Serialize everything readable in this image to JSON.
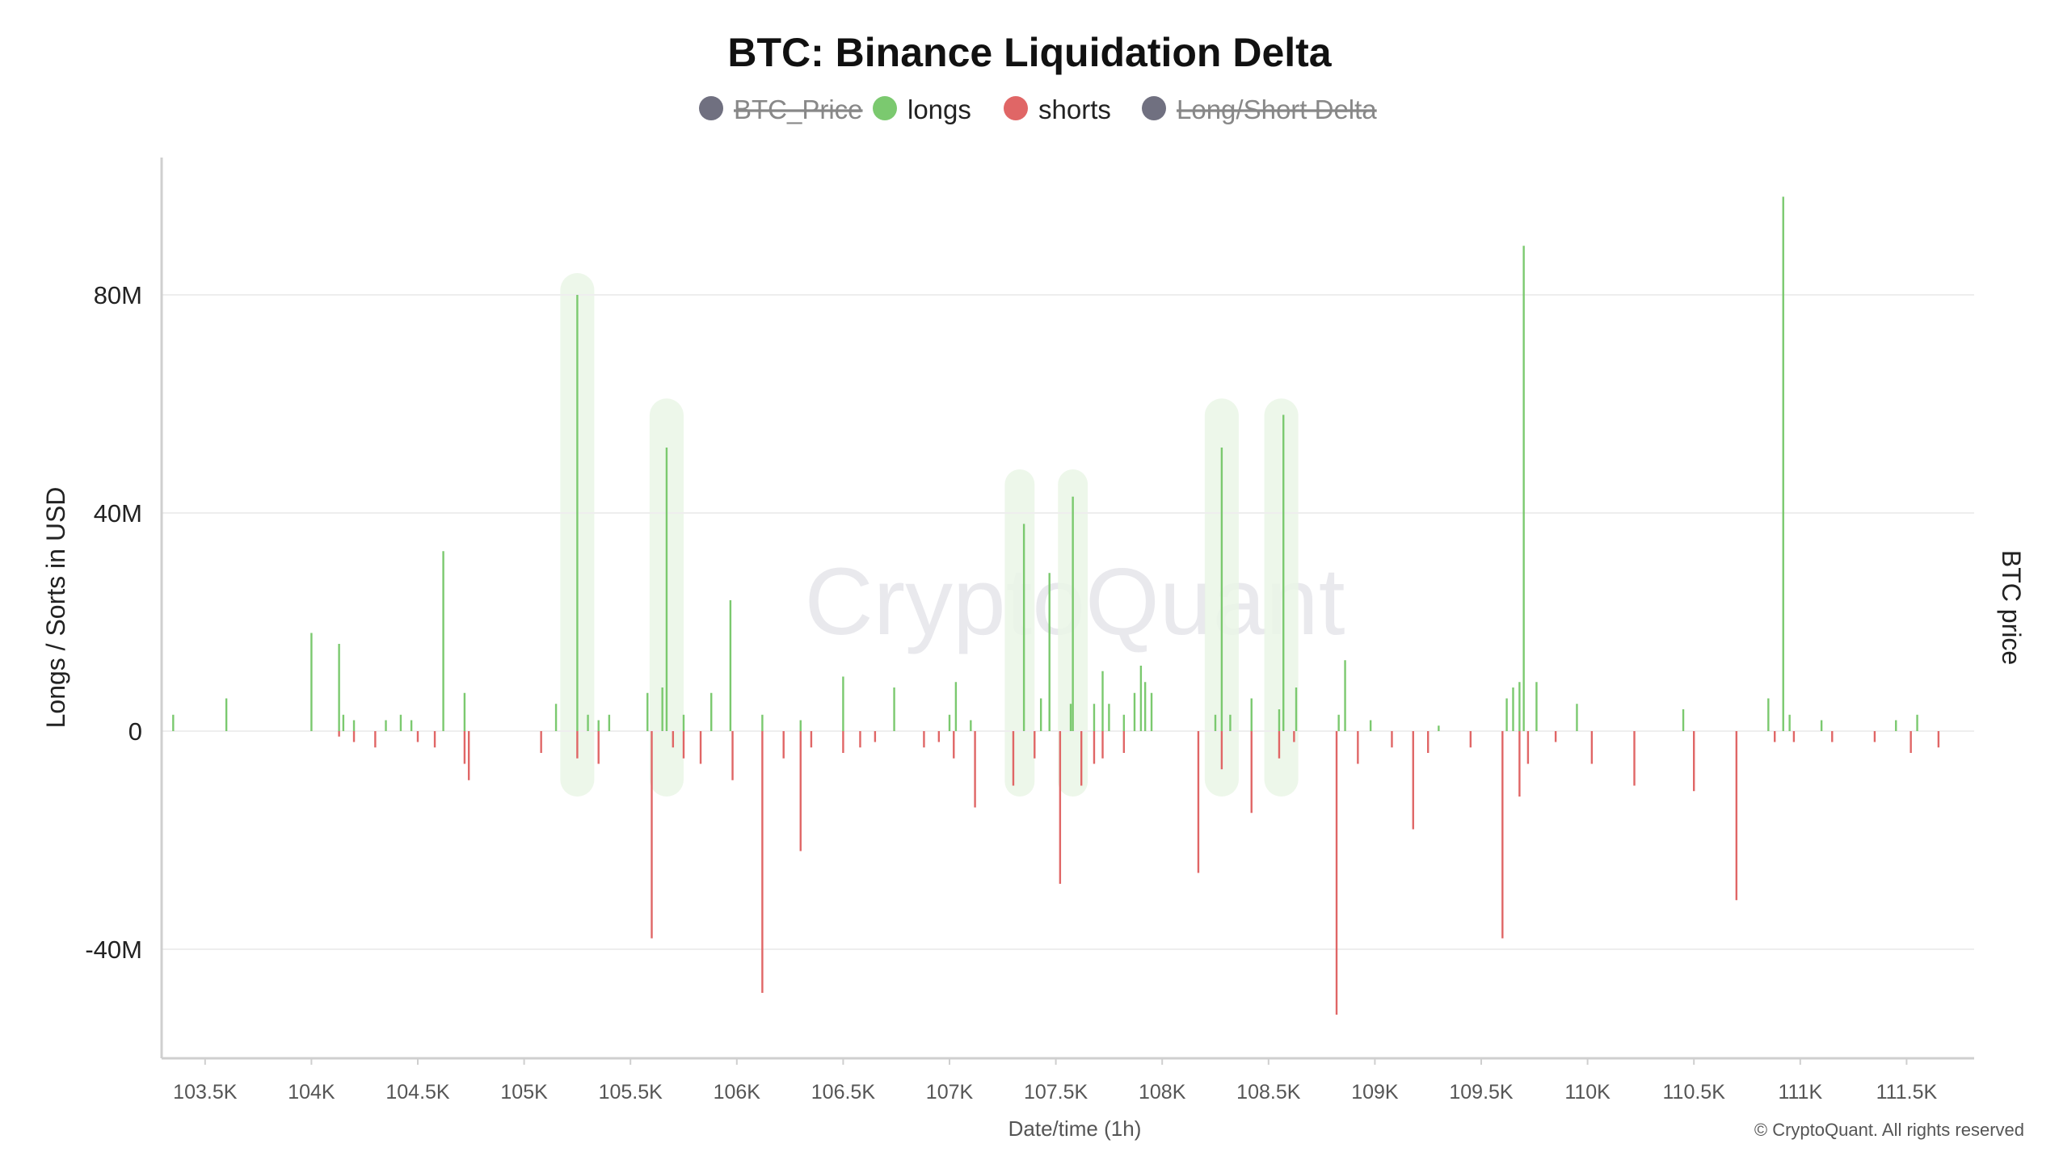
{
  "chart_data": {
    "type": "bar",
    "title": "BTC: Binance Liquidation Delta",
    "xlabel": "Date/time (1h)",
    "ylabel": "Longs / Sorts in USD",
    "y2label": "BTC price",
    "watermark": "CryptoQuant",
    "copyright": "© CryptoQuant. All rights reserved",
    "ylim": [
      -60,
      100
    ],
    "yticks": [
      {
        "value": 80,
        "label": "80M"
      },
      {
        "value": 40,
        "label": "40M"
      },
      {
        "value": 0,
        "label": "0"
      },
      {
        "value": -40,
        "label": "-40M"
      }
    ],
    "xlim": [
      103.25,
      111.75
    ],
    "xticks": [
      {
        "value": 103.5,
        "label": "103.5K"
      },
      {
        "value": 104.0,
        "label": "104K"
      },
      {
        "value": 104.5,
        "label": "104.5K"
      },
      {
        "value": 105.0,
        "label": "105K"
      },
      {
        "value": 105.5,
        "label": "105.5K"
      },
      {
        "value": 106.0,
        "label": "106K"
      },
      {
        "value": 106.5,
        "label": "106.5K"
      },
      {
        "value": 107.0,
        "label": "107K"
      },
      {
        "value": 107.5,
        "label": "107.5K"
      },
      {
        "value": 108.0,
        "label": "108K"
      },
      {
        "value": 108.5,
        "label": "108.5K"
      },
      {
        "value": 109.0,
        "label": "109K"
      },
      {
        "value": 109.5,
        "label": "109.5K"
      },
      {
        "value": 110.0,
        "label": "110K"
      },
      {
        "value": 110.5,
        "label": "110.5K"
      },
      {
        "value": 111.0,
        "label": "111K"
      },
      {
        "value": 111.5,
        "label": "111.5K"
      }
    ],
    "grid": true,
    "legend_position": "top-center",
    "legend": [
      {
        "label": "BTC_Price",
        "color": "#707080",
        "hidden": true
      },
      {
        "label": "longs",
        "color": "#7bc96f",
        "hidden": false
      },
      {
        "label": "shorts",
        "color": "#e06666",
        "hidden": false
      },
      {
        "label": "Long/Short Delta",
        "color": "#707080",
        "hidden": true
      }
    ],
    "series": [
      {
        "name": "longs",
        "color": "#7bc96f",
        "points": [
          [
            103.35,
            3
          ],
          [
            103.6,
            6
          ],
          [
            104.0,
            18
          ],
          [
            104.13,
            16
          ],
          [
            104.15,
            3
          ],
          [
            104.2,
            2
          ],
          [
            104.35,
            2
          ],
          [
            104.42,
            3
          ],
          [
            104.47,
            2
          ],
          [
            104.62,
            33
          ],
          [
            104.72,
            7
          ],
          [
            105.15,
            5
          ],
          [
            105.25,
            80
          ],
          [
            105.3,
            3
          ],
          [
            105.35,
            2
          ],
          [
            105.4,
            3
          ],
          [
            105.58,
            7
          ],
          [
            105.65,
            8
          ],
          [
            105.67,
            52
          ],
          [
            105.75,
            3
          ],
          [
            105.88,
            7
          ],
          [
            105.97,
            24
          ],
          [
            106.12,
            3
          ],
          [
            106.3,
            2
          ],
          [
            106.5,
            10
          ],
          [
            106.74,
            8
          ],
          [
            107.0,
            3
          ],
          [
            107.03,
            9
          ],
          [
            107.1,
            2
          ],
          [
            107.35,
            38
          ],
          [
            107.43,
            6
          ],
          [
            107.47,
            29
          ],
          [
            107.57,
            5
          ],
          [
            107.58,
            43
          ],
          [
            107.68,
            5
          ],
          [
            107.72,
            11
          ],
          [
            107.75,
            5
          ],
          [
            107.82,
            3
          ],
          [
            107.87,
            7
          ],
          [
            107.9,
            12
          ],
          [
            107.92,
            9
          ],
          [
            107.95,
            7
          ],
          [
            108.25,
            3
          ],
          [
            108.28,
            52
          ],
          [
            108.32,
            3
          ],
          [
            108.42,
            6
          ],
          [
            108.55,
            4
          ],
          [
            108.57,
            58
          ],
          [
            108.63,
            8
          ],
          [
            108.83,
            3
          ],
          [
            108.86,
            13
          ],
          [
            108.98,
            2
          ],
          [
            109.3,
            1
          ],
          [
            109.62,
            6
          ],
          [
            109.65,
            8
          ],
          [
            109.68,
            9
          ],
          [
            109.7,
            89
          ],
          [
            109.76,
            9
          ],
          [
            109.95,
            5
          ],
          [
            110.45,
            4
          ],
          [
            110.85,
            6
          ],
          [
            110.92,
            98
          ],
          [
            110.95,
            3
          ],
          [
            111.1,
            2
          ],
          [
            111.45,
            2
          ],
          [
            111.55,
            3
          ]
        ]
      },
      {
        "name": "shorts",
        "color": "#e06666",
        "points": [
          [
            104.13,
            -1
          ],
          [
            104.2,
            -2
          ],
          [
            104.3,
            -3
          ],
          [
            104.5,
            -2
          ],
          [
            104.58,
            -3
          ],
          [
            104.72,
            -6
          ],
          [
            104.74,
            -9
          ],
          [
            105.08,
            -4
          ],
          [
            105.25,
            -5
          ],
          [
            105.35,
            -6
          ],
          [
            105.6,
            -38
          ],
          [
            105.7,
            -3
          ],
          [
            105.75,
            -5
          ],
          [
            105.83,
            -6
          ],
          [
            105.98,
            -9
          ],
          [
            106.12,
            -48
          ],
          [
            106.22,
            -5
          ],
          [
            106.3,
            -22
          ],
          [
            106.35,
            -3
          ],
          [
            106.5,
            -4
          ],
          [
            106.58,
            -3
          ],
          [
            106.65,
            -2
          ],
          [
            106.88,
            -3
          ],
          [
            106.95,
            -2
          ],
          [
            107.02,
            -5
          ],
          [
            107.12,
            -14
          ],
          [
            107.3,
            -10
          ],
          [
            107.4,
            -5
          ],
          [
            107.52,
            -28
          ],
          [
            107.62,
            -10
          ],
          [
            107.68,
            -6
          ],
          [
            107.72,
            -5
          ],
          [
            107.82,
            -4
          ],
          [
            108.17,
            -26
          ],
          [
            108.28,
            -7
          ],
          [
            108.42,
            -15
          ],
          [
            108.55,
            -5
          ],
          [
            108.62,
            -2
          ],
          [
            108.82,
            -52
          ],
          [
            108.92,
            -6
          ],
          [
            109.08,
            -3
          ],
          [
            109.18,
            -18
          ],
          [
            109.25,
            -4
          ],
          [
            109.45,
            -3
          ],
          [
            109.6,
            -38
          ],
          [
            109.68,
            -12
          ],
          [
            109.72,
            -6
          ],
          [
            109.85,
            -2
          ],
          [
            110.02,
            -6
          ],
          [
            110.22,
            -10
          ],
          [
            110.5,
            -11
          ],
          [
            110.7,
            -31
          ],
          [
            110.88,
            -2
          ],
          [
            110.97,
            -2
          ],
          [
            111.15,
            -2
          ],
          [
            111.35,
            -2
          ],
          [
            111.52,
            -4
          ],
          [
            111.65,
            -3
          ]
        ]
      }
    ],
    "highlight_regions": [
      {
        "x0": 105.17,
        "x1": 105.33,
        "y0": -12,
        "y1": 84
      },
      {
        "x0": 105.59,
        "x1": 105.75,
        "y0": -12,
        "y1": 61
      },
      {
        "x0": 107.26,
        "x1": 107.4,
        "y0": -12,
        "y1": 48
      },
      {
        "x0": 107.51,
        "x1": 107.65,
        "y0": -12,
        "y1": 48
      },
      {
        "x0": 108.2,
        "x1": 108.36,
        "y0": -12,
        "y1": 61
      },
      {
        "x0": 108.48,
        "x1": 108.64,
        "y0": -12,
        "y1": 61
      }
    ]
  }
}
